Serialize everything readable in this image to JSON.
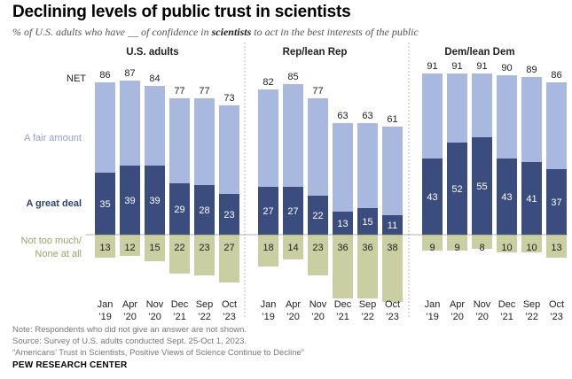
{
  "header": {
    "title": "Declining levels of public trust in scientists",
    "subtitle_pre": "% of U.S. adults who have __ of confidence in ",
    "subtitle_bold": "scientists",
    "subtitle_post": " to act in the best interests of the public"
  },
  "footer": {
    "note": "Note: Respondents who did not give an answer are not shown.",
    "source": "Source: Survey of U.S. adults conducted Sept. 25-Oct 1, 2023.",
    "report": "“Americans’ Trust in Scientists, Positive Views of Science Continue to Decline”",
    "brand": "PEW RESEARCH CENTER"
  },
  "chart_data": {
    "type": "bar",
    "stacked": true,
    "diverging": true,
    "row_labels": {
      "net": "NET",
      "fair": "A fair amount",
      "great": "A great deal",
      "low_line1": "Not too much/",
      "low_line2": "None at all"
    },
    "colors": {
      "great": "#3b4d7e",
      "fair": "#a8b8de",
      "low": "#c9cfa0",
      "great_text": "#2f3f70",
      "fair_text": "#8ea0cf",
      "low_text": "#9ba46a"
    },
    "categories": [
      [
        "Jan",
        "’19"
      ],
      [
        "Apr",
        "’20"
      ],
      [
        "Nov",
        "’20"
      ],
      [
        "Dec",
        "’21"
      ],
      [
        "Sep",
        "’22"
      ],
      [
        "Oct",
        "’23"
      ]
    ],
    "panels": [
      {
        "title": "U.S. adults",
        "net": [
          86,
          87,
          84,
          77,
          77,
          73
        ],
        "great_deal": [
          35,
          39,
          39,
          29,
          28,
          23
        ],
        "fair_amount": [
          51,
          48,
          45,
          48,
          49,
          50
        ],
        "not_too_much_none": [
          13,
          12,
          15,
          22,
          23,
          27
        ]
      },
      {
        "title": "Rep/lean Rep",
        "net": [
          82,
          85,
          77,
          63,
          63,
          61
        ],
        "great_deal": [
          27,
          27,
          22,
          13,
          15,
          11
        ],
        "fair_amount": [
          55,
          58,
          55,
          50,
          48,
          50
        ],
        "not_too_much_none": [
          18,
          14,
          23,
          36,
          36,
          38
        ]
      },
      {
        "title": "Dem/lean Dem",
        "net": [
          91,
          91,
          91,
          90,
          89,
          86
        ],
        "great_deal": [
          43,
          52,
          55,
          43,
          41,
          37
        ],
        "fair_amount": [
          48,
          39,
          36,
          47,
          48,
          49
        ],
        "not_too_much_none": [
          9,
          9,
          8,
          10,
          10,
          13
        ]
      }
    ]
  }
}
